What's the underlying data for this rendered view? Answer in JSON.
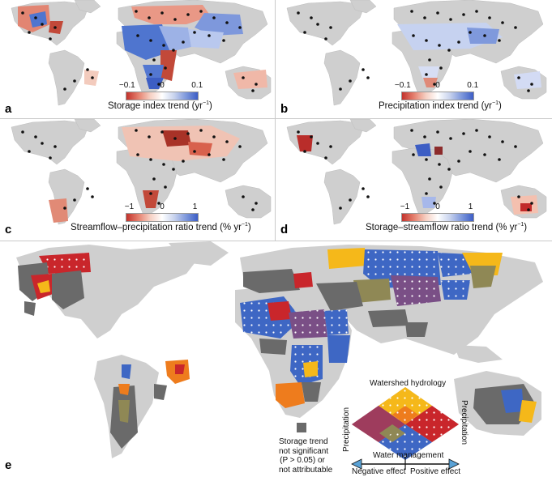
{
  "panels": {
    "a": {
      "label": "a",
      "colorbar": {
        "ticks": [
          "−0.1",
          "0",
          "0.1"
        ],
        "title": "Storage index trend (yr",
        "title_sup": "−1",
        "title_end": ")"
      }
    },
    "b": {
      "label": "b",
      "colorbar": {
        "ticks": [
          "−0.1",
          "0",
          "0.1"
        ],
        "title": "Precipitation index trend (yr",
        "title_sup": "−1",
        "title_end": ")"
      }
    },
    "c": {
      "label": "c",
      "colorbar": {
        "ticks": [
          "−1",
          "0",
          "1"
        ],
        "title": "Streamflow–precipitation ratio trend (% yr",
        "title_sup": "−1",
        "title_end": ")"
      }
    },
    "d": {
      "label": "d",
      "colorbar": {
        "ticks": [
          "−1",
          "0",
          "1"
        ],
        "title": "Storage–streamflow ratio trend (% yr",
        "title_sup": "−1",
        "title_end": ")"
      }
    },
    "e": {
      "label": "e",
      "legend": {
        "not_significant_lines": [
          "Storage trend",
          "not significant",
          "(P > 0.05) or",
          "not attributable"
        ],
        "watershed_label": "Watershed hydrology",
        "precip_left": "Precipitation",
        "precip_right": "Precipitation",
        "water_mgmt": "Water management",
        "negative": "Negative effect",
        "positive": "Positive effect"
      }
    }
  },
  "colors": {
    "land": "#cfcfcf",
    "red": "#c9262b",
    "orange": "#ee7c1d",
    "yellow": "#f5b81a",
    "blue": "#3e67c4",
    "olive": "#8f8855",
    "purple": "#7a4f86",
    "gray_basin": "#6a6a6a",
    "arrow": "#5aa2d6"
  }
}
